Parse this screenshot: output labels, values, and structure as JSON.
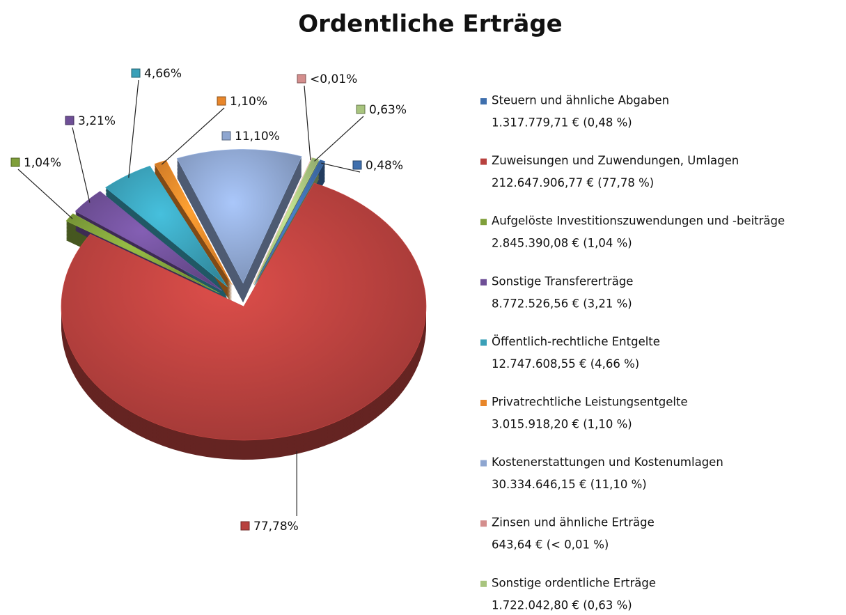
{
  "chart_data": {
    "type": "pie",
    "title": "Ordentliche Erträge",
    "categories": [
      "Steuern und ähnliche Abgaben",
      "Zuweisungen und Zuwendungen, Umlagen",
      "Aufgelöste Investitionszuwendungen und -beiträge",
      "Sonstige Transfererträge",
      "Öffentlich-rechtliche Entgelte",
      "Privatrechtliche Leistungsentgelte",
      "Kostenerstattungen und Kostenumlagen",
      "Zinsen und ähnliche Erträge",
      "Sonstige ordentliche Erträge"
    ],
    "legend_details": [
      "1.317.779,71 € (0,48 %)",
      "212.647.906,77 € (77,78 %)",
      "2.845.390,08 € (1,04 %)",
      "8.772.526,56 € (3,21 %)",
      "12.747.608,55 € (4,66 %)",
      "3.015.918,20 € (1,10 %)",
      "30.334.646,15 € (11,10 %)",
      "643,64 € (< 0,01 %)",
      "1.722.042,80 € (0,63 %)"
    ],
    "values": [
      0.48,
      77.78,
      1.04,
      3.21,
      4.66,
      1.1,
      11.1,
      0.0002,
      0.63
    ],
    "value_labels": [
      "0,48%",
      "77,78%",
      "1,04%",
      "3,21%",
      "4,66%",
      "1,10%",
      "11,10%",
      "<0,01%",
      "0,63%"
    ],
    "colors": [
      "#3f6fad",
      "#b8413e",
      "#7f9f3a",
      "#6e4f96",
      "#3aa0b8",
      "#e8862a",
      "#8ea6d0",
      "#d48e8d",
      "#a8c47e"
    ],
    "legend": "right"
  }
}
